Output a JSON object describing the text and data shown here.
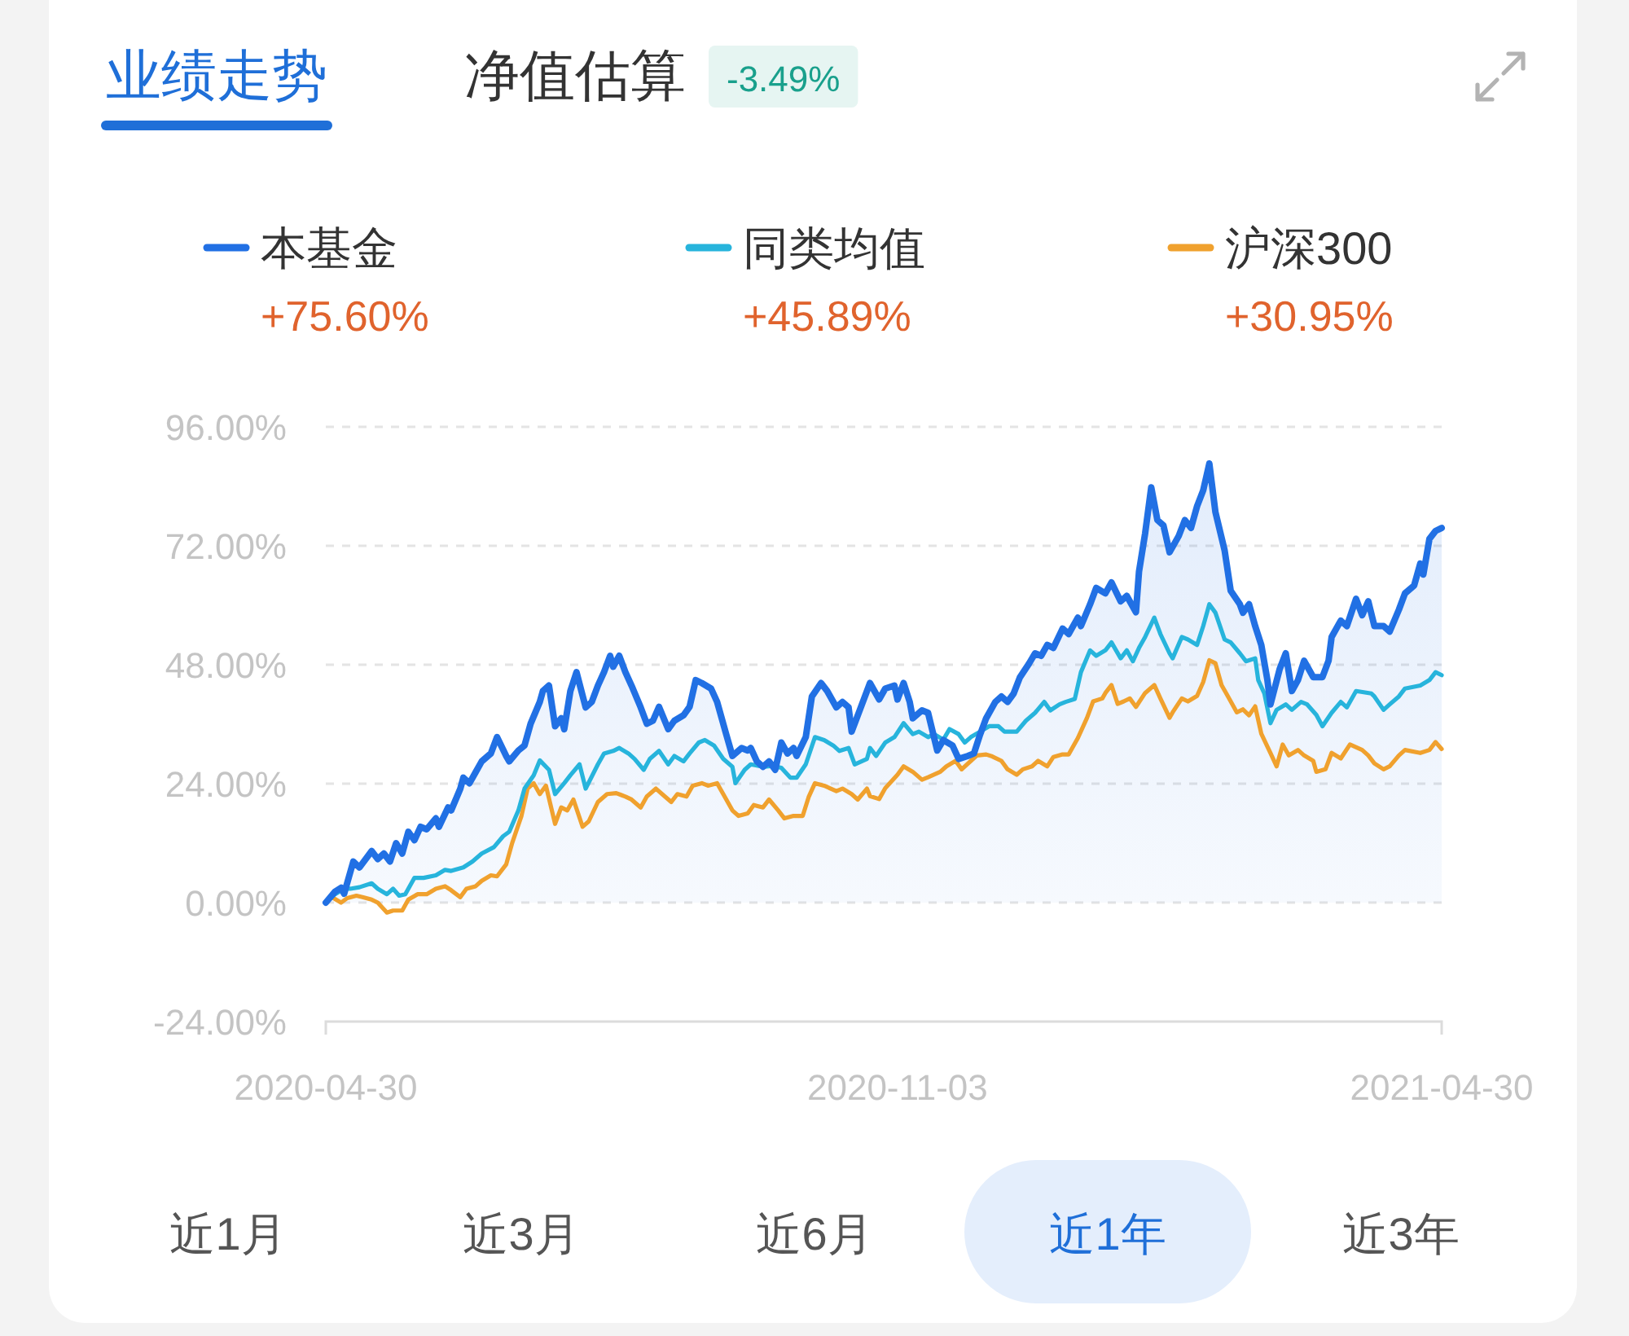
{
  "chart_data": {
    "type": "line",
    "title": "业绩走势",
    "subtitle": "净值估算",
    "annotations": [
      "-3.49%",
      "+75.60%",
      "+45.89%",
      "+30.95%",
      "近1月",
      "近3月",
      "近6月",
      "近1年",
      "近3年"
    ],
    "legend": "top",
    "grid": "y",
    "xlim": [
      "2020-04-30",
      "2021-04-30"
    ],
    "xticks": [
      "2020-04-30",
      "2020-11-03",
      "2021-04-30"
    ],
    "ylim": [
      -24,
      96
    ],
    "yticks": [
      {
        "value": -24,
        "label": "-24.00%"
      },
      {
        "value": 0,
        "label": "0.00%"
      },
      {
        "value": 24,
        "label": "24.00%"
      },
      {
        "value": 48,
        "label": "48.00%"
      },
      {
        "value": 72,
        "label": "72.00%"
      },
      {
        "value": 96,
        "label": "96.00%"
      }
    ],
    "series": [
      {
        "name": "本基金",
        "type": "area",
        "color": "#2170e4",
        "x": [
          "2020-04-30",
          "2020-05-03",
          "2020-05-05",
          "2020-05-06",
          "2020-05-09",
          "2020-05-11",
          "2020-05-15",
          "2020-05-17",
          "2020-05-19",
          "2020-05-21",
          "2020-05-23",
          "2020-05-25",
          "2020-05-27",
          "2020-05-29",
          "2020-05-31",
          "2020-06-02",
          "2020-06-05",
          "2020-06-06",
          "2020-06-09",
          "2020-06-10",
          "2020-06-13",
          "2020-06-14",
          "2020-06-16",
          "2020-06-18",
          "2020-06-20",
          "2020-06-23",
          "2020-06-25",
          "2020-06-28",
          "2020-06-29",
          "2020-07-02",
          "2020-07-04",
          "2020-07-06",
          "2020-07-09",
          "2020-07-10",
          "2020-07-12",
          "2020-07-14",
          "2020-07-16",
          "2020-07-17",
          "2020-07-19",
          "2020-07-21",
          "2020-07-24",
          "2020-07-26",
          "2020-07-28",
          "2020-07-30",
          "2020-08-01",
          "2020-08-02",
          "2020-08-04",
          "2020-08-06",
          "2020-08-08",
          "2020-08-11",
          "2020-08-13",
          "2020-08-15",
          "2020-08-17",
          "2020-08-20",
          "2020-08-22",
          "2020-08-25",
          "2020-08-27",
          "2020-08-29",
          "2020-08-31",
          "2020-09-03",
          "2020-09-05",
          "2020-09-08",
          "2020-09-10",
          "2020-09-13",
          "2020-09-15",
          "2020-09-16",
          "2020-09-18",
          "2020-09-20",
          "2020-09-22",
          "2020-09-24",
          "2020-09-26",
          "2020-09-28",
          "2020-09-30",
          "2020-10-01",
          "2020-10-04",
          "2020-10-06",
          "2020-10-09",
          "2020-10-11",
          "2020-10-14",
          "2020-10-16",
          "2020-10-18",
          "2020-10-19",
          "2020-10-22",
          "2020-10-25",
          "2020-10-28",
          "2020-10-30",
          "2020-11-02",
          "2020-11-03",
          "2020-11-05",
          "2020-11-07",
          "2020-11-08",
          "2020-11-11",
          "2020-11-13",
          "2020-11-16",
          "2020-11-18",
          "2020-11-21",
          "2020-11-23",
          "2020-11-26",
          "2020-11-28",
          "2020-11-30",
          "2020-12-02",
          "2020-12-05",
          "2020-12-07",
          "2020-12-09",
          "2020-12-11",
          "2020-12-13",
          "2020-12-16",
          "2020-12-18",
          "2020-12-20",
          "2020-12-22",
          "2020-12-24",
          "2020-12-27",
          "2020-12-29",
          "2021-01-01",
          "2021-01-02",
          "2021-01-05",
          "2021-01-07",
          "2021-01-10",
          "2021-01-12",
          "2021-01-15",
          "2021-01-17",
          "2021-01-20",
          "2021-01-21",
          "2021-01-23",
          "2021-01-25",
          "2021-01-27",
          "2021-01-29",
          "2021-01-31",
          "2021-02-03",
          "2021-02-05",
          "2021-02-07",
          "2021-02-09",
          "2021-02-11",
          "2021-02-13",
          "2021-02-15",
          "2021-02-18",
          "2021-02-20",
          "2021-02-23",
          "2021-02-24",
          "2021-02-26",
          "2021-02-28",
          "2021-03-02",
          "2021-03-04",
          "2021-03-05",
          "2021-03-08",
          "2021-03-10",
          "2021-03-12",
          "2021-03-14",
          "2021-03-16",
          "2021-03-19",
          "2021-03-22",
          "2021-03-24",
          "2021-03-25",
          "2021-03-28",
          "2021-03-30",
          "2021-04-02",
          "2021-04-04",
          "2021-04-06",
          "2021-04-08",
          "2021-04-11",
          "2021-04-13",
          "2021-04-16",
          "2021-04-18",
          "2021-04-21",
          "2021-04-23",
          "2021-04-24",
          "2021-04-26",
          "2021-04-28",
          "2021-04-30"
        ],
        "values": [
          0,
          2.2,
          3,
          1.8,
          8.3,
          7.1,
          10.4,
          8.8,
          9.9,
          8.3,
          12,
          9.9,
          14.3,
          12.6,
          15.3,
          14.8,
          17,
          15.3,
          19.2,
          18.6,
          23,
          25.2,
          24.1,
          26.3,
          28.5,
          30.1,
          33.4,
          29.6,
          28.5,
          30.7,
          31.7,
          36.1,
          40.5,
          42.7,
          43.8,
          35.6,
          37.2,
          35,
          42.7,
          46.5,
          39.4,
          40.5,
          43.8,
          46.5,
          49.8,
          47.6,
          49.8,
          46.5,
          43.8,
          39.4,
          36.1,
          36.7,
          39.5,
          35,
          36.7,
          37.8,
          39.5,
          44.9,
          44.3,
          43.2,
          40.5,
          33.9,
          29.6,
          31.2,
          30.7,
          31.2,
          28.5,
          27.4,
          28.5,
          26.8,
          32.3,
          30.1,
          31.2,
          29.6,
          33.4,
          41.6,
          44.3,
          42.7,
          39.4,
          40.5,
          39.4,
          34.5,
          39.4,
          44.3,
          41,
          43.2,
          43.8,
          41,
          44.3,
          40.5,
          37.2,
          38.8,
          38.3,
          30.7,
          32.8,
          31.7,
          29,
          29.6,
          30.1,
          33.9,
          37.2,
          40.5,
          41.6,
          40.5,
          42.2,
          45.4,
          48.2,
          50.3,
          49.8,
          52,
          51.4,
          55.3,
          54.2,
          57.5,
          55.8,
          60.2,
          63.5,
          62.4,
          64.6,
          60.8,
          61.9,
          58.6,
          66.8,
          74.5,
          83.8,
          77.2,
          76.1,
          70.7,
          74,
          77.2,
          75.6,
          80,
          83.2,
          88.6,
          78.8,
          71.1,
          62.9,
          60.2,
          58.5,
          60.2,
          55.8,
          52,
          44.9,
          40,
          47.1,
          50.3,
          42.7,
          44.9,
          48.8,
          45.5,
          45.5,
          48.8,
          53.6,
          56.9,
          55.8,
          61.3,
          58,
          60.8,
          55.8,
          55.8,
          54.7,
          59.1,
          62.4,
          64,
          68.4,
          66.2,
          73.4,
          75,
          75.6
        ]
      },
      {
        "name": "同类均值",
        "color": "#27b4dc",
        "x": [
          "2020-04-30",
          "2020-05-03",
          "2020-05-06",
          "2020-05-08",
          "2020-05-11",
          "2020-05-15",
          "2020-05-17",
          "2020-05-20",
          "2020-05-22",
          "2020-05-24",
          "2020-05-26",
          "2020-05-29",
          "2020-06-01",
          "2020-06-05",
          "2020-06-08",
          "2020-06-10",
          "2020-06-14",
          "2020-06-17",
          "2020-06-20",
          "2020-06-24",
          "2020-06-27",
          "2020-06-29",
          "2020-07-02",
          "2020-07-04",
          "2020-07-07",
          "2020-07-09",
          "2020-07-12",
          "2020-07-14",
          "2020-07-17",
          "2020-07-19",
          "2020-07-22",
          "2020-07-24",
          "2020-07-28",
          "2020-07-30",
          "2020-08-02",
          "2020-08-04",
          "2020-08-07",
          "2020-08-09",
          "2020-08-12",
          "2020-08-14",
          "2020-08-17",
          "2020-08-20",
          "2020-08-22",
          "2020-08-25",
          "2020-08-27",
          "2020-08-30",
          "2020-09-01",
          "2020-09-04",
          "2020-09-07",
          "2020-09-10",
          "2020-09-11",
          "2020-09-14",
          "2020-09-16",
          "2020-09-20",
          "2020-09-23",
          "2020-09-26",
          "2020-09-29",
          "2020-10-01",
          "2020-10-04",
          "2020-10-07",
          "2020-10-10",
          "2020-10-13",
          "2020-10-15",
          "2020-10-18",
          "2020-10-20",
          "2020-10-24",
          "2020-10-25",
          "2020-10-27",
          "2020-10-30",
          "2020-11-02",
          "2020-11-05",
          "2020-11-08",
          "2020-11-10",
          "2020-11-13",
          "2020-11-15",
          "2020-11-18",
          "2020-11-20",
          "2020-11-23",
          "2020-11-25",
          "2020-11-27",
          "2020-11-30",
          "2020-12-03",
          "2020-12-06",
          "2020-12-08",
          "2020-12-12",
          "2020-12-15",
          "2020-12-18",
          "2020-12-21",
          "2020-12-23",
          "2020-12-26",
          "2020-12-28",
          "2020-12-31",
          "2021-01-02",
          "2021-01-05",
          "2021-01-07",
          "2021-01-10",
          "2021-01-12",
          "2021-01-15",
          "2021-01-17",
          "2021-01-19",
          "2021-01-21",
          "2021-01-23",
          "2021-01-26",
          "2021-01-28",
          "2021-01-31",
          "2021-02-01",
          "2021-02-04",
          "2021-02-06",
          "2021-02-09",
          "2021-02-11",
          "2021-02-13",
          "2021-02-15",
          "2021-02-18",
          "2021-02-20",
          "2021-02-23",
          "2021-02-25",
          "2021-02-28",
          "2021-03-01",
          "2021-03-03",
          "2021-03-05",
          "2021-03-07",
          "2021-03-10",
          "2021-03-12",
          "2021-03-15",
          "2021-03-17",
          "2021-03-20",
          "2021-03-22",
          "2021-03-25",
          "2021-03-28",
          "2021-03-30",
          "2021-04-02",
          "2021-04-07",
          "2021-04-08",
          "2021-04-11",
          "2021-04-13",
          "2021-04-16",
          "2021-04-18",
          "2021-04-23",
          "2021-04-26",
          "2021-04-28",
          "2021-04-30"
        ],
        "values": [
          0,
          1.7,
          2.8,
          2.8,
          3.1,
          3.9,
          2.8,
          1.7,
          2.8,
          1.4,
          1.7,
          5,
          5,
          5.5,
          6.6,
          6.4,
          7.1,
          8.3,
          9.9,
          11.2,
          13.4,
          14.3,
          18.6,
          23,
          25.7,
          28.7,
          26.8,
          21.9,
          24.1,
          25.7,
          27.9,
          23,
          27.9,
          30.1,
          30.6,
          31.2,
          30.1,
          29,
          26.8,
          29,
          30.6,
          27.9,
          29.6,
          28.5,
          30.1,
          32.3,
          32.8,
          31.7,
          29,
          27.4,
          24.1,
          26.8,
          27.9,
          27.4,
          27.6,
          27.2,
          25.2,
          25.2,
          27.9,
          33.4,
          32.8,
          31.7,
          30.6,
          31.2,
          27.9,
          29,
          31.2,
          29.6,
          32.3,
          33.4,
          36.2,
          34,
          34.5,
          33.4,
          34,
          32.9,
          35,
          34,
          32.3,
          33.4,
          34.5,
          35.6,
          35.6,
          34.5,
          34.5,
          36.7,
          38.3,
          40.5,
          38.8,
          40,
          40.5,
          41.1,
          46.5,
          50.9,
          49.8,
          50.9,
          52.5,
          49.3,
          50.9,
          48.7,
          51.4,
          53.6,
          57.5,
          54.2,
          50.3,
          49.3,
          53.6,
          53.1,
          52,
          55.8,
          60.2,
          58.5,
          53.1,
          52.5,
          50.3,
          48.7,
          49.3,
          44.9,
          42.2,
          36.2,
          38.9,
          40,
          38.9,
          40.5,
          40,
          37.9,
          35.6,
          38.3,
          40.5,
          39.4,
          42.7,
          42.2,
          41.6,
          38.9,
          40,
          41.6,
          43.2,
          43.8,
          44.9,
          46.5,
          45.9
        ]
      },
      {
        "name": "沪深300",
        "color": "#f0a12e",
        "x": [
          "2020-04-30",
          "2020-05-02",
          "2020-05-05",
          "2020-05-07",
          "2020-05-10",
          "2020-05-12",
          "2020-05-15",
          "2020-05-17",
          "2020-05-20",
          "2020-05-22",
          "2020-05-25",
          "2020-05-27",
          "2020-05-30",
          "2020-06-02",
          "2020-06-05",
          "2020-06-08",
          "2020-06-10",
          "2020-06-13",
          "2020-06-15",
          "2020-06-18",
          "2020-06-20",
          "2020-06-23",
          "2020-06-25",
          "2020-06-28",
          "2020-06-30",
          "2020-07-03",
          "2020-07-05",
          "2020-07-07",
          "2020-07-09",
          "2020-07-11",
          "2020-07-14",
          "2020-07-16",
          "2020-07-18",
          "2020-07-20",
          "2020-07-23",
          "2020-07-25",
          "2020-07-28",
          "2020-07-31",
          "2020-08-03",
          "2020-08-06",
          "2020-08-08",
          "2020-08-11",
          "2020-08-13",
          "2020-08-16",
          "2020-08-18",
          "2020-08-21",
          "2020-08-23",
          "2020-08-26",
          "2020-08-28",
          "2020-08-31",
          "2020-09-02",
          "2020-09-05",
          "2020-09-07",
          "2020-09-10",
          "2020-09-12",
          "2020-09-15",
          "2020-09-17",
          "2020-09-20",
          "2020-09-22",
          "2020-09-25",
          "2020-09-27",
          "2020-09-30",
          "2020-10-03",
          "2020-10-05",
          "2020-10-07",
          "2020-10-10",
          "2020-10-14",
          "2020-10-16",
          "2020-10-19",
          "2020-10-21",
          "2020-10-24",
          "2020-10-25",
          "2020-10-28",
          "2020-10-30",
          "2020-11-03",
          "2020-11-05",
          "2020-11-08",
          "2020-11-11",
          "2020-11-13",
          "2020-11-17",
          "2020-11-19",
          "2020-11-22",
          "2020-11-24",
          "2020-11-27",
          "2020-11-29",
          "2020-12-02",
          "2020-12-04",
          "2020-12-07",
          "2020-12-09",
          "2020-12-12",
          "2020-12-14",
          "2020-12-17",
          "2020-12-19",
          "2020-12-22",
          "2020-12-24",
          "2020-12-27",
          "2020-12-29",
          "2021-01-01",
          "2021-01-04",
          "2021-01-06",
          "2021-01-09",
          "2021-01-10",
          "2021-01-12",
          "2021-01-14",
          "2021-01-16",
          "2021-01-18",
          "2021-01-20",
          "2021-01-23",
          "2021-01-26",
          "2021-01-28",
          "2021-01-31",
          "2021-02-01",
          "2021-02-04",
          "2021-02-06",
          "2021-02-09",
          "2021-02-11",
          "2021-02-13",
          "2021-02-15",
          "2021-02-17",
          "2021-02-19",
          "2021-02-22",
          "2021-02-24",
          "2021-02-26",
          "2021-02-28",
          "2021-03-02",
          "2021-03-05",
          "2021-03-07",
          "2021-03-09",
          "2021-03-11",
          "2021-03-14",
          "2021-03-16",
          "2021-03-19",
          "2021-03-20",
          "2021-03-23",
          "2021-03-25",
          "2021-03-28",
          "2021-03-31",
          "2021-04-04",
          "2021-04-06",
          "2021-04-08",
          "2021-04-11",
          "2021-04-13",
          "2021-04-16",
          "2021-04-18",
          "2021-04-23",
          "2021-04-26",
          "2021-04-28",
          "2021-04-30"
        ],
        "values": [
          0,
          1.1,
          0,
          0.9,
          1.4,
          1.1,
          0.6,
          0,
          -2,
          -1.6,
          -1.6,
          0.6,
          1.7,
          1.7,
          2.8,
          3.3,
          2.5,
          1.1,
          2.8,
          3.3,
          4.4,
          5.5,
          5.3,
          7.7,
          12.1,
          17.5,
          23,
          24.1,
          21.9,
          23.6,
          15.9,
          19.2,
          18.6,
          20.8,
          15.3,
          16.4,
          20.3,
          21.9,
          22.1,
          21.4,
          20.8,
          19.2,
          21.4,
          23,
          21.9,
          20.3,
          21.9,
          21.4,
          23.6,
          24.1,
          23.6,
          24.1,
          21.9,
          18.6,
          17.5,
          18,
          19.7,
          19.2,
          20.8,
          18.6,
          17,
          17.5,
          17.5,
          21.4,
          24.1,
          23.6,
          22.5,
          23,
          21.9,
          20.8,
          23,
          21.5,
          20.9,
          23.1,
          25.8,
          27.5,
          26.4,
          24.8,
          25.3,
          26.4,
          27.5,
          28.6,
          26.9,
          28.6,
          29.7,
          29.9,
          29.5,
          28.6,
          26.9,
          25.8,
          26.9,
          27.5,
          28.6,
          27.5,
          29.4,
          29.9,
          29.9,
          33.2,
          37.3,
          40.6,
          41.2,
          42.3,
          43.9,
          40.1,
          40.6,
          41.2,
          39.5,
          42.3,
          43.9,
          41.2,
          37.3,
          38.4,
          41.2,
          40.6,
          41.7,
          44.5,
          48.9,
          48.3,
          43.9,
          41.7,
          38.4,
          39,
          37.8,
          39.6,
          34.1,
          30.2,
          27.5,
          31.9,
          29.7,
          30.8,
          29.7,
          28.6,
          26.4,
          26.9,
          30.2,
          29.1,
          31.9,
          30.8,
          29.7,
          28.1,
          26.9,
          27.5,
          29.7,
          30.8,
          30.2,
          30.8,
          32.4,
          31
        ]
      }
    ]
  }
}
